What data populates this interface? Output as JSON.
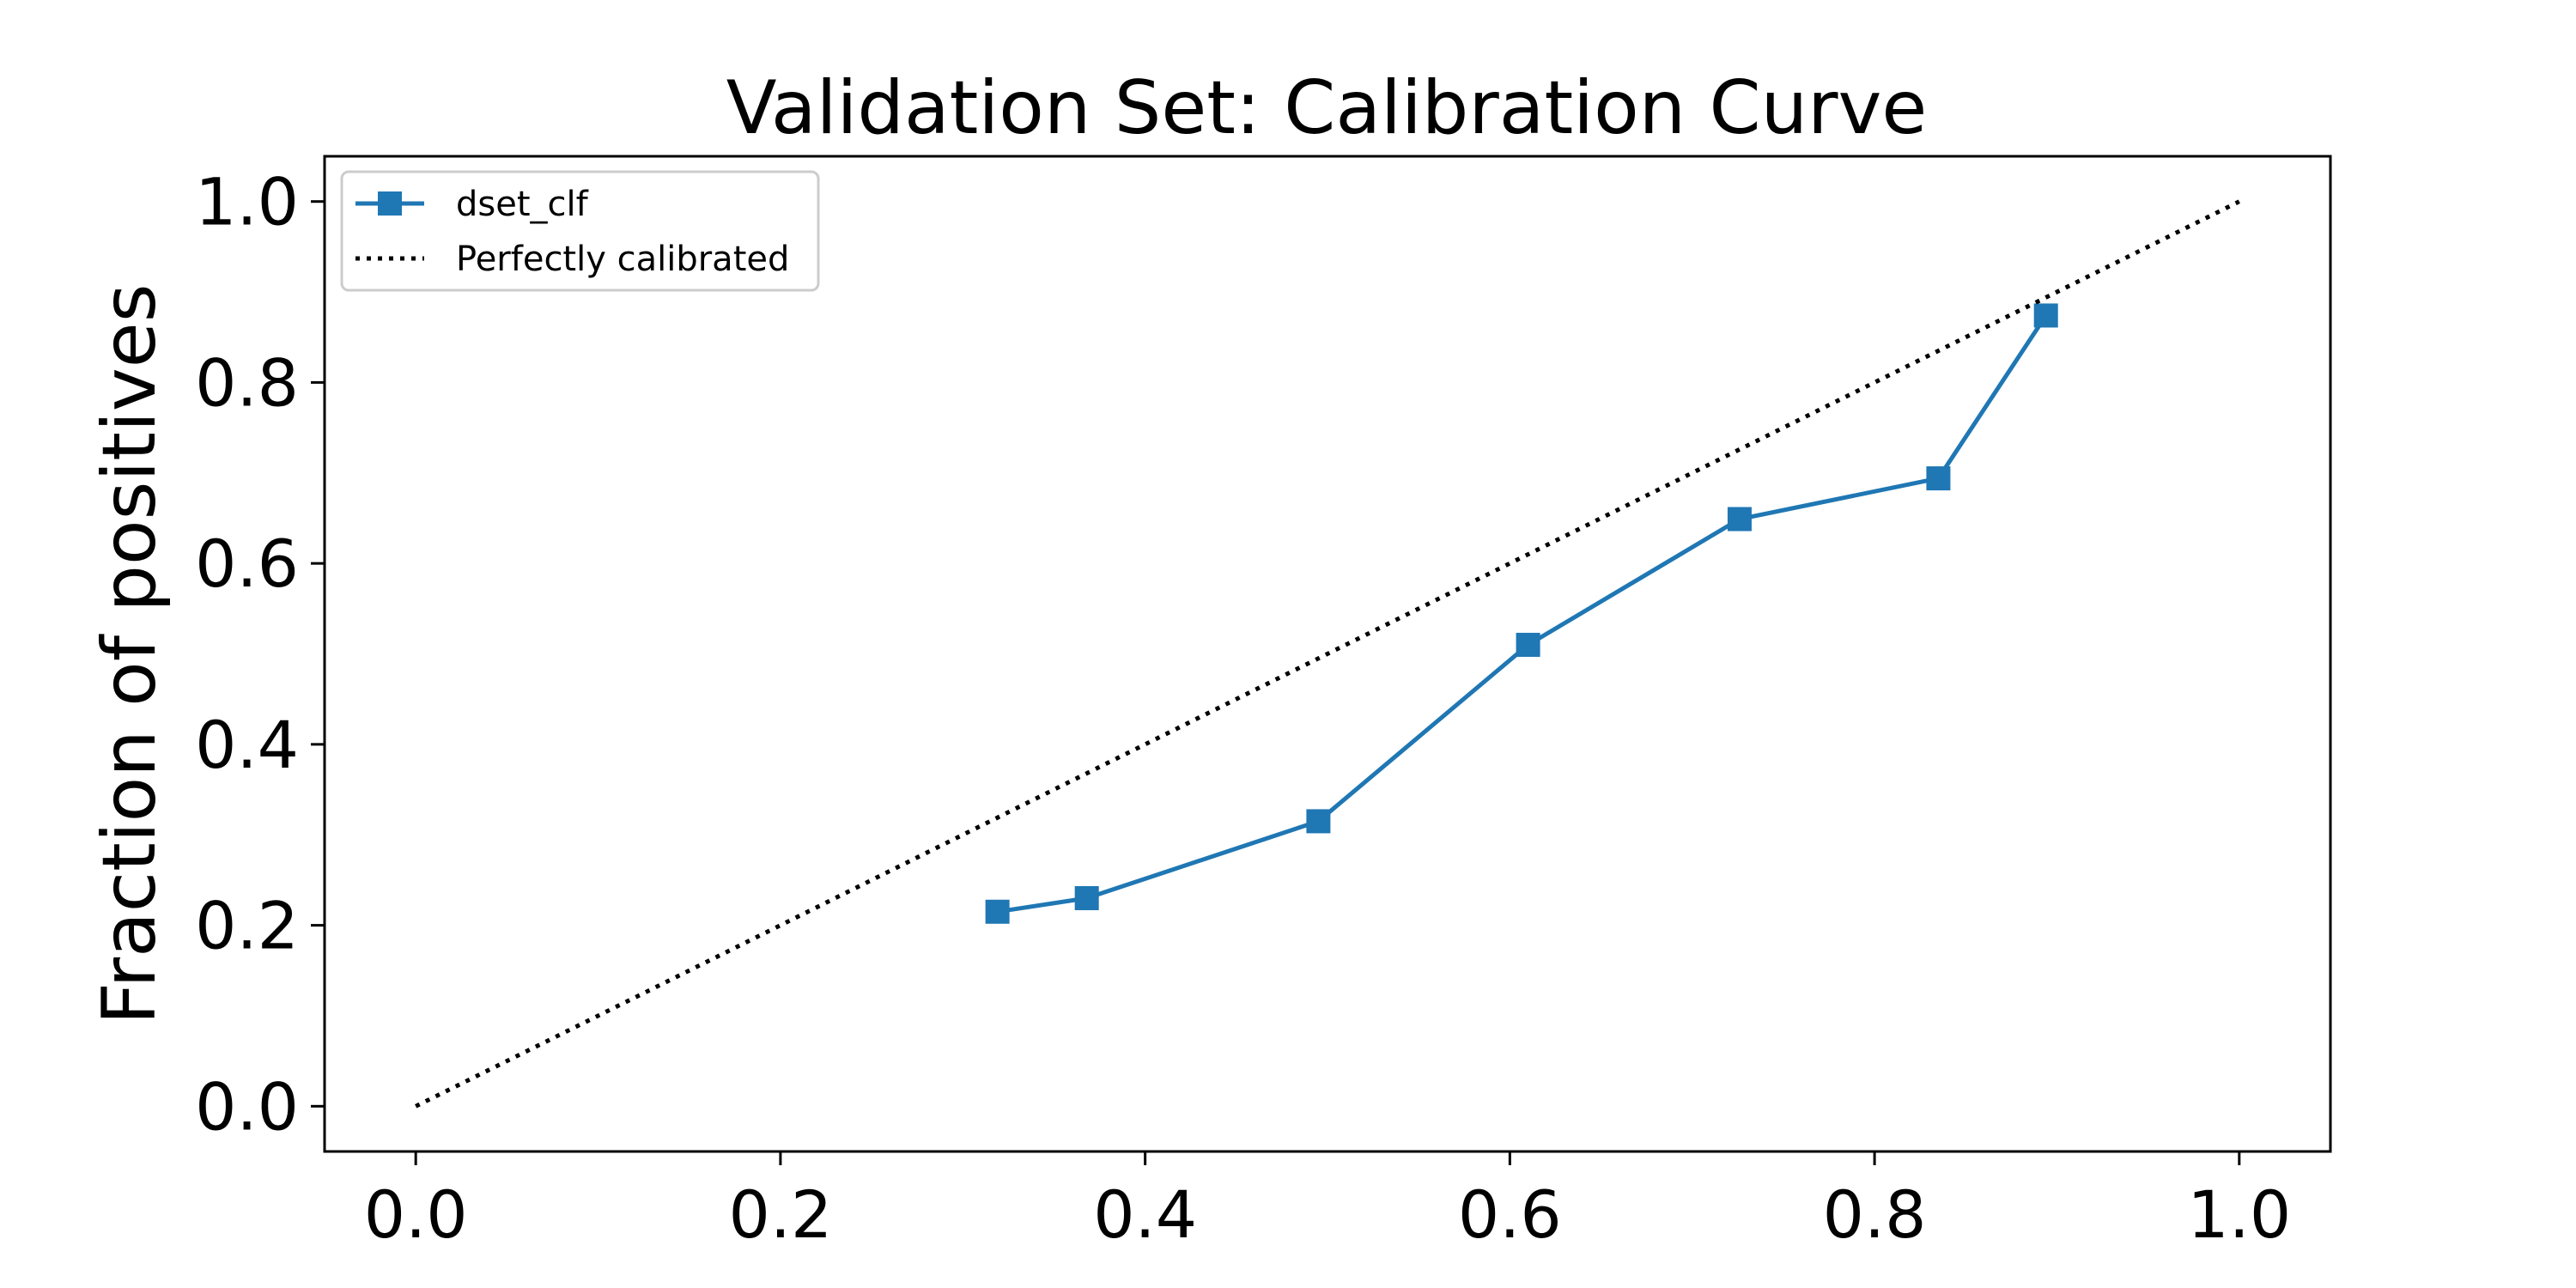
{
  "chart_data": {
    "type": "line",
    "title": "Validation Set: Calibration Curve",
    "xlabel": "",
    "ylabel": "Fraction of positives",
    "xlim": [
      -0.05,
      1.05
    ],
    "ylim": [
      -0.05,
      1.05
    ],
    "x_ticks": [
      "0.0",
      "0.2",
      "0.4",
      "0.6",
      "0.8",
      "1.0"
    ],
    "y_ticks": [
      "0.0",
      "0.2",
      "0.4",
      "0.6",
      "0.8",
      "1.0"
    ],
    "grid": false,
    "legend_position": "top-left",
    "series": [
      {
        "name": "dset_clf",
        "color": "#1f77b4",
        "marker": "square",
        "line_style": "solid",
        "x": [
          0.319,
          0.368,
          0.495,
          0.61,
          0.726,
          0.835,
          0.894
        ],
        "y": [
          0.215,
          0.23,
          0.315,
          0.51,
          0.649,
          0.694,
          0.874
        ]
      },
      {
        "name": "Perfectly calibrated",
        "color": "#000000",
        "marker": "none",
        "line_style": "dotted",
        "x": [
          0.0,
          1.0
        ],
        "y": [
          0.0,
          1.0
        ]
      }
    ]
  }
}
